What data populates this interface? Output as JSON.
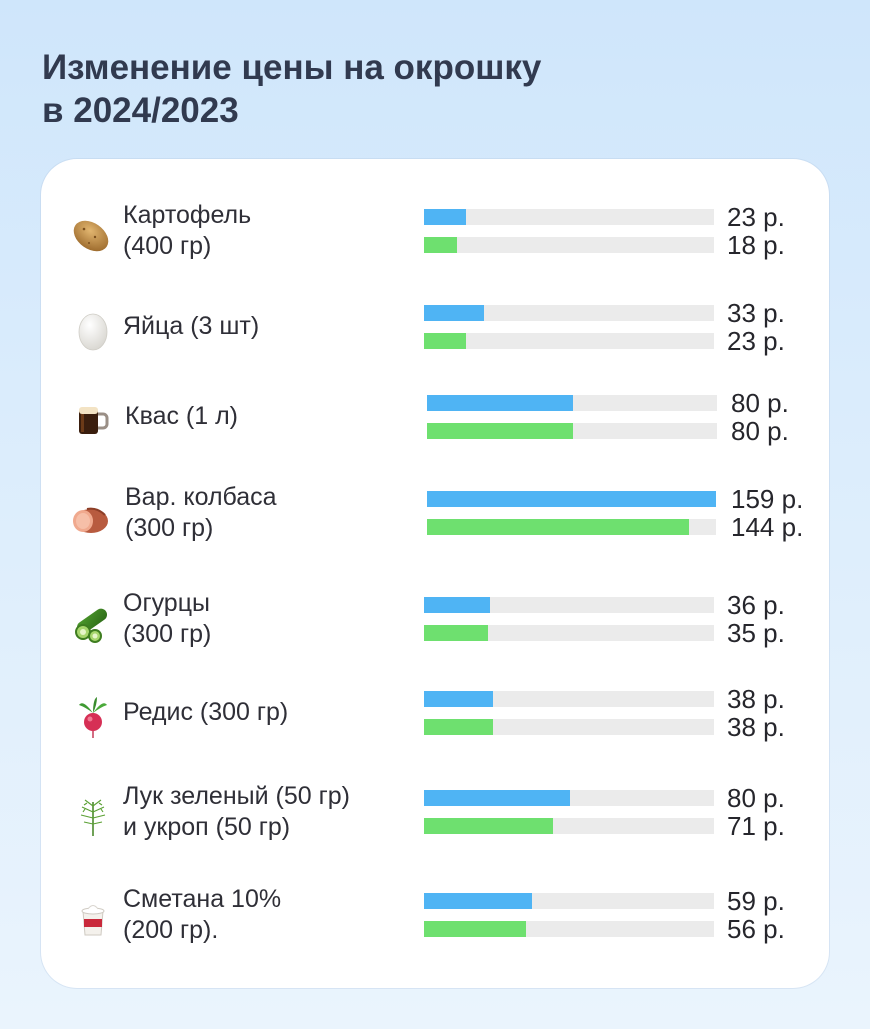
{
  "title_lines": [
    "Изменение цены на окрошку",
    "в 2024/2023"
  ],
  "colors": {
    "y2024": "#4fb4f4",
    "y2023": "#6ee06f",
    "track": "#ebebeb"
  },
  "chart_data": {
    "type": "bar",
    "orientation": "horizontal",
    "title": "Изменение цены на окрошку в 2024/2023",
    "xlim": [
      0,
      159
    ],
    "categories": [
      [
        "Картофель",
        "(400 гр)"
      ],
      [
        "Яйца (3 шт)"
      ],
      [
        "Квас (1 л)"
      ],
      [
        "Вар. колбаса",
        "(300 гр)"
      ],
      [
        "Огурцы",
        "(300 гр)"
      ],
      [
        "Редис (300 гр)"
      ],
      [
        "Лук зеленый (50 гр)",
        "и укроп (50 гр)"
      ],
      [
        "Сметана 10%",
        "(200 гр)."
      ]
    ],
    "icons": [
      "potato-icon",
      "egg-icon",
      "kvass-mug-icon",
      "sausage-icon",
      "cucumber-icon",
      "radish-icon",
      "dill-icon",
      "sour-cream-icon"
    ],
    "series": [
      {
        "values": [
          23,
          33,
          80,
          159,
          36,
          38,
          80,
          59
        ],
        "labels": [
          "23 р.",
          "33 р.",
          "80 р.",
          "159 р.",
          "36 р.",
          "38 р.",
          "80 р.",
          "59 р."
        ]
      },
      {
        "values": [
          18,
          23,
          80,
          144,
          35,
          38,
          71,
          56
        ],
        "labels": [
          "18 р.",
          "23 р.",
          "80 р.",
          "144 р.",
          "35 р.",
          "38 р.",
          "71 р.",
          "56 р."
        ]
      }
    ]
  }
}
